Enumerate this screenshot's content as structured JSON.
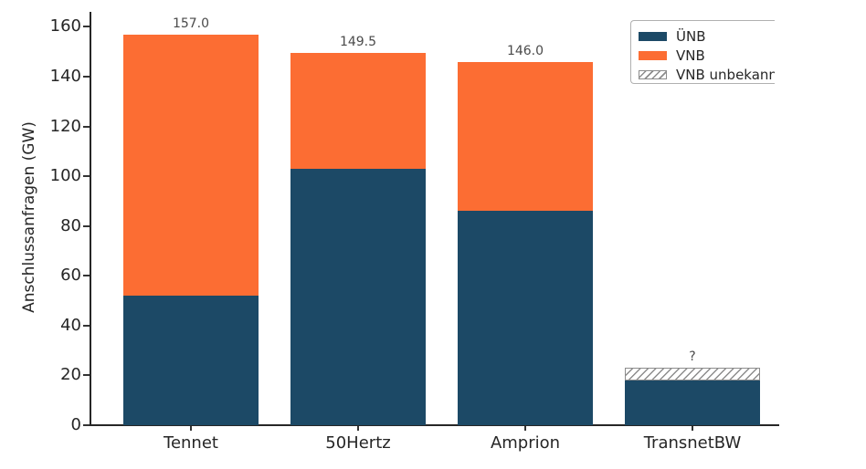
{
  "chart_data": {
    "type": "bar",
    "stacked": true,
    "title": "",
    "ylabel": "Anschlussanfragen (GW)",
    "xlabel": "",
    "categories": [
      "Tennet",
      "50Hertz",
      "Amprion",
      "TransnetBW"
    ],
    "series": [
      {
        "name": "ÜNB",
        "color": "#1c4966",
        "style": "solid",
        "values": [
          52,
          103,
          86,
          18
        ]
      },
      {
        "name": "VNB",
        "color": "#fc6d33",
        "style": "solid",
        "values": [
          105,
          46.5,
          60,
          0
        ]
      },
      {
        "name": "VNB unbekannt",
        "color": "#ffffff",
        "style": "hatched",
        "hatch_color": "#8c8c8c",
        "values": [
          0,
          0,
          0,
          5
        ]
      }
    ],
    "total_labels": [
      "157.0",
      "149.5",
      "146.0",
      "?"
    ],
    "ylim": [
      0,
      160
    ],
    "yticks": [
      0,
      20,
      40,
      60,
      80,
      100,
      120,
      140,
      160
    ],
    "grid": false,
    "legend": {
      "position": "upper-right",
      "visible_last_entry": "VNB unbekann"
    },
    "colors": {
      "unb": "#1c4966",
      "vnb": "#fc6d33",
      "hatch": "#8c8c8c",
      "axis": "#262626"
    }
  }
}
